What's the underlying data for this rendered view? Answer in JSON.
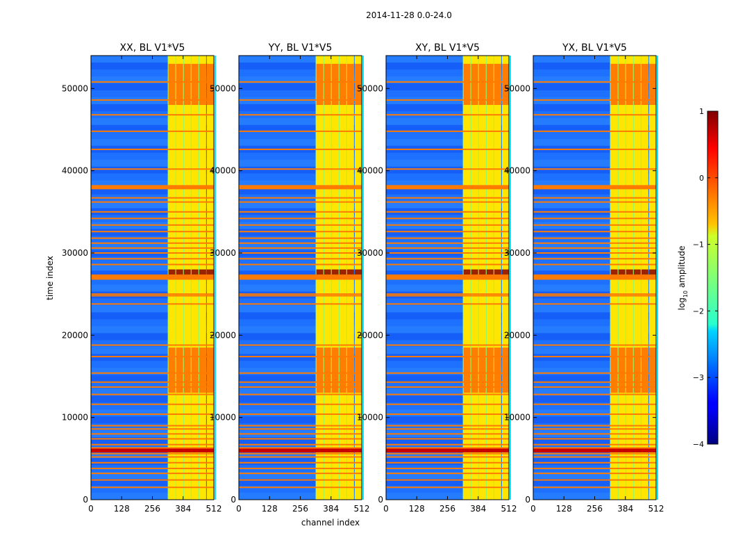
{
  "chart_data": {
    "type": "heatmap",
    "suptitle": "2014-11-28 0.0-24.0",
    "xlabel": "channel index",
    "ylabel": "time index",
    "x_ticks": [
      "0",
      "128",
      "256",
      "384",
      "512"
    ],
    "x_tick_values": [
      0,
      128,
      256,
      384,
      512
    ],
    "y_ticks": [
      "0",
      "10000",
      "20000",
      "30000",
      "40000",
      "50000"
    ],
    "y_tick_values": [
      0,
      10000,
      20000,
      30000,
      40000,
      50000
    ],
    "xlim": [
      0,
      512
    ],
    "ylim": [
      0,
      54000
    ],
    "panels": [
      {
        "title": "XX, BL V1*V5",
        "bright_channel_start": 320
      },
      {
        "title": "YY, BL V1*V5",
        "bright_channel_start": 320
      },
      {
        "title": "XY, BL V1*V5",
        "bright_channel_start": 320
      },
      {
        "title": "YX, BL V1*V5",
        "bright_channel_start": 320
      }
    ],
    "band_rows": [
      1500,
      2400,
      3200,
      3800,
      4500,
      5200,
      5600,
      6000,
      6300,
      6700,
      7400,
      8000,
      8600,
      9000,
      10400,
      11600,
      12800,
      13700,
      14300,
      15400,
      17400,
      18800,
      23800,
      24800,
      25000,
      27000,
      27300,
      28600,
      29300,
      30000,
      30600,
      31200,
      31800,
      32600,
      33400,
      34200,
      35000,
      36200,
      36700,
      38000,
      40200,
      42600,
      44800,
      46800,
      48600,
      50800
    ],
    "bright_channels": [
      320,
      352,
      384,
      416,
      448,
      480
    ],
    "colorbar": {
      "label_prefix": "log",
      "label_sub": "10",
      "label_suffix": " amplitude",
      "range": [
        -4,
        1
      ],
      "ticks": [
        "−4",
        "−3",
        "−2",
        "−1",
        "0",
        "1"
      ],
      "tick_values": [
        -4,
        -3,
        -2,
        -1,
        0,
        1
      ],
      "stops": [
        {
          "v": 0.0,
          "c": "#00007f"
        },
        {
          "v": 0.11,
          "c": "#0000ff"
        },
        {
          "v": 0.125,
          "c": "#0000ff"
        },
        {
          "v": 0.34,
          "c": "#00d4ff"
        },
        {
          "v": 0.36,
          "c": "#29ffce"
        },
        {
          "v": 0.625,
          "c": "#ceff29"
        },
        {
          "v": 0.66,
          "c": "#ffc400"
        },
        {
          "v": 0.89,
          "c": "#ff0000"
        },
        {
          "v": 1.0,
          "c": "#7f0000"
        }
      ]
    }
  }
}
